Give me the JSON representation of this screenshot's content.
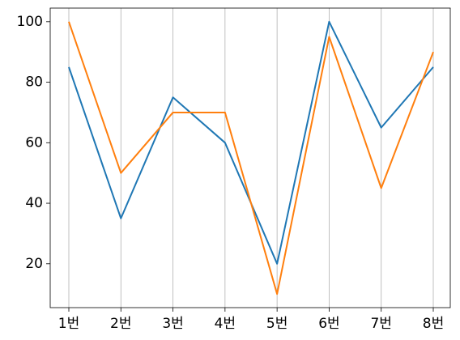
{
  "chart_data": {
    "type": "line",
    "categories": [
      "1번",
      "2번",
      "3번",
      "4번",
      "5번",
      "6번",
      "7번",
      "8번"
    ],
    "series": [
      {
        "color": "#1f77b4",
        "values": [
          85,
          35,
          75,
          60,
          20,
          100,
          65,
          85
        ]
      },
      {
        "color": "#ff7f0e",
        "values": [
          100,
          50,
          70,
          70,
          10,
          95,
          45,
          90
        ]
      }
    ],
    "ylim": [
      5.5,
      104.5
    ],
    "yticks": [
      20,
      40,
      60,
      80,
      100
    ],
    "grid": "x"
  }
}
